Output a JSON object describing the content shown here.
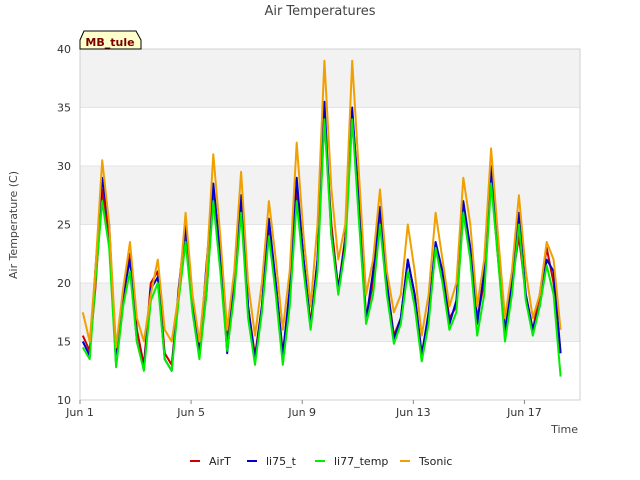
{
  "chart_data": {
    "type": "line",
    "title": "Air Temperatures",
    "xlabel": "Time",
    "ylabel": "Air Temperature (C)",
    "site_tag": "MB_tule",
    "ylim": [
      10,
      40
    ],
    "xlim": [
      0,
      18
    ],
    "x_unit": "days since Jun 1",
    "yticks": [
      10,
      15,
      20,
      25,
      30,
      35,
      40
    ],
    "xticks": [
      {
        "value": 0,
        "label": "Jun 1"
      },
      {
        "value": 4,
        "label": "Jun 5"
      },
      {
        "value": 8,
        "label": "Jun 9"
      },
      {
        "value": 12,
        "label": "Jun 13"
      },
      {
        "value": 16,
        "label": "Jun 17"
      }
    ],
    "grid": true,
    "bands": true,
    "legend_position": "bottom",
    "series": [
      {
        "name": "AirT",
        "color": "#cc0000",
        "x": [
          0.1,
          0.35,
          0.55,
          0.8,
          1.05,
          1.3,
          1.55,
          1.8,
          2.05,
          2.3,
          2.55,
          2.8,
          3.05,
          3.3,
          3.55,
          3.8,
          4.05,
          4.3,
          4.55,
          4.8,
          5.05,
          5.3,
          5.55,
          5.8,
          6.05,
          6.3,
          6.55,
          6.8,
          7.05,
          7.3,
          7.55,
          7.8,
          8.05,
          8.3,
          8.55,
          8.8,
          9.05,
          9.3,
          9.55,
          9.8,
          10.05,
          10.3,
          10.55,
          10.8,
          11.05,
          11.3,
          11.55,
          11.8,
          12.05,
          12.3,
          12.55,
          12.8,
          13.05,
          13.3,
          13.55,
          13.8,
          14.05,
          14.3,
          14.55,
          14.8,
          15.05,
          15.3,
          15.55,
          15.8,
          16.05,
          16.3,
          16.55,
          16.8,
          17.05,
          17.3
        ],
        "y": [
          15.5,
          14.2,
          19.5,
          28.0,
          24.0,
          14.0,
          18.5,
          22.5,
          16.0,
          13.0,
          20.0,
          21.0,
          14.0,
          13.0,
          19.0,
          24.0,
          18.0,
          14.2,
          19.0,
          27.5,
          22.0,
          15.0,
          20.0,
          26.5,
          18.0,
          13.8,
          18.0,
          25.0,
          20.0,
          14.0,
          19.0,
          28.0,
          22.0,
          16.5,
          22.0,
          34.0,
          25.0,
          19.5,
          24.0,
          34.5,
          27.0,
          17.0,
          20.0,
          26.0,
          20.0,
          15.5,
          17.0,
          22.0,
          19.0,
          14.0,
          17.0,
          23.0,
          21.0,
          17.0,
          18.0,
          26.0,
          23.0,
          17.0,
          20.0,
          29.0,
          22.0,
          16.0,
          20.0,
          24.0,
          19.0,
          16.0,
          19.0,
          23.0,
          20.0,
          14.0
        ]
      },
      {
        "name": "li75_t",
        "color": "#0000cc",
        "x": [
          0.1,
          0.35,
          0.55,
          0.8,
          1.05,
          1.3,
          1.55,
          1.8,
          2.05,
          2.3,
          2.55,
          2.8,
          3.05,
          3.3,
          3.55,
          3.8,
          4.05,
          4.3,
          4.55,
          4.8,
          5.05,
          5.3,
          5.55,
          5.8,
          6.05,
          6.3,
          6.55,
          6.8,
          7.05,
          7.3,
          7.55,
          7.8,
          8.05,
          8.3,
          8.55,
          8.8,
          9.05,
          9.3,
          9.55,
          9.8,
          10.05,
          10.3,
          10.55,
          10.8,
          11.05,
          11.3,
          11.55,
          11.8,
          12.05,
          12.3,
          12.55,
          12.8,
          13.05,
          13.3,
          13.55,
          13.8,
          14.05,
          14.3,
          14.55,
          14.8,
          15.05,
          15.3,
          15.55,
          15.8,
          16.05,
          16.3,
          16.55,
          16.8,
          17.05,
          17.3
        ],
        "y": [
          15.0,
          13.8,
          21.0,
          29.0,
          25.0,
          13.0,
          19.0,
          22.0,
          15.0,
          12.6,
          19.5,
          20.5,
          13.5,
          12.5,
          19.5,
          25.0,
          18.0,
          13.8,
          21.5,
          28.5,
          22.5,
          14.0,
          20.0,
          27.5,
          18.0,
          13.4,
          18.0,
          25.5,
          20.0,
          13.8,
          19.5,
          29.0,
          22.0,
          16.2,
          22.0,
          35.5,
          24.0,
          19.5,
          23.5,
          35.0,
          26.0,
          16.8,
          21.0,
          26.5,
          20.0,
          15.2,
          17.0,
          22.0,
          19.0,
          13.8,
          17.5,
          23.5,
          21.0,
          16.5,
          18.5,
          27.0,
          23.0,
          16.5,
          21.0,
          30.0,
          23.0,
          15.8,
          20.0,
          26.0,
          19.0,
          16.0,
          18.0,
          22.0,
          21.0,
          14.0
        ]
      },
      {
        "name": "li77_temp",
        "color": "#00ee00",
        "x": [
          0.1,
          0.35,
          0.55,
          0.8,
          1.05,
          1.3,
          1.55,
          1.8,
          2.05,
          2.3,
          2.55,
          2.8,
          3.05,
          3.3,
          3.55,
          3.8,
          4.05,
          4.3,
          4.55,
          4.8,
          5.05,
          5.3,
          5.55,
          5.8,
          6.05,
          6.3,
          6.55,
          6.8,
          7.05,
          7.3,
          7.55,
          7.8,
          8.05,
          8.3,
          8.55,
          8.8,
          9.05,
          9.3,
          9.55,
          9.8,
          10.05,
          10.3,
          10.55,
          10.8,
          11.05,
          11.3,
          11.55,
          11.8,
          12.05,
          12.3,
          12.55,
          12.8,
          13.05,
          13.3,
          13.55,
          13.8,
          14.05,
          14.3,
          14.55,
          14.8,
          15.05,
          15.3,
          15.55,
          15.8,
          16.05,
          16.3,
          16.55,
          16.8,
          17.05,
          17.3
        ],
        "y": [
          14.5,
          13.5,
          20.0,
          27.0,
          23.0,
          12.8,
          18.0,
          21.0,
          15.0,
          12.5,
          18.5,
          20.0,
          13.5,
          12.5,
          18.5,
          23.5,
          17.5,
          13.5,
          19.0,
          27.0,
          21.0,
          14.2,
          19.0,
          26.0,
          17.0,
          13.0,
          17.5,
          24.0,
          19.0,
          13.0,
          18.0,
          27.0,
          21.0,
          16.0,
          21.0,
          34.0,
          24.0,
          19.0,
          23.0,
          34.0,
          25.0,
          16.5,
          19.0,
          25.0,
          19.0,
          14.8,
          16.5,
          21.0,
          18.0,
          13.3,
          16.5,
          23.0,
          20.0,
          16.0,
          17.5,
          26.0,
          22.0,
          15.5,
          19.0,
          28.5,
          22.0,
          15.0,
          19.0,
          25.0,
          18.5,
          15.5,
          18.0,
          21.5,
          19.0,
          12.0
        ]
      },
      {
        "name": "Tsonic",
        "color": "#f0a000",
        "x": [
          0.1,
          0.35,
          0.55,
          0.8,
          1.05,
          1.3,
          1.55,
          1.8,
          2.05,
          2.3,
          2.55,
          2.8,
          3.05,
          3.3,
          3.55,
          3.8,
          4.05,
          4.3,
          4.55,
          4.8,
          5.05,
          5.3,
          5.55,
          5.8,
          6.05,
          6.3,
          6.55,
          6.8,
          7.05,
          7.3,
          7.55,
          7.8,
          8.05,
          8.3,
          8.55,
          8.8,
          9.05,
          9.3,
          9.55,
          9.8,
          10.05,
          10.3,
          10.55,
          10.8,
          11.05,
          11.3,
          11.55,
          11.8,
          12.05,
          12.3,
          12.55,
          12.8,
          13.05,
          13.3,
          13.55,
          13.8,
          14.05,
          14.3,
          14.55,
          14.8,
          15.05,
          15.3,
          15.55,
          15.8,
          16.05,
          16.3,
          16.55,
          16.8,
          17.05,
          17.3
        ],
        "y": [
          17.5,
          15.0,
          21.0,
          30.5,
          25.0,
          14.5,
          19.5,
          23.5,
          17.0,
          15.0,
          19.0,
          22.0,
          16.0,
          15.0,
          19.0,
          26.0,
          19.0,
          15.0,
          21.0,
          31.0,
          24.0,
          16.0,
          21.0,
          29.5,
          20.0,
          15.5,
          20.0,
          27.0,
          22.0,
          16.0,
          21.0,
          32.0,
          24.0,
          18.0,
          25.0,
          39.0,
          28.0,
          22.0,
          25.0,
          39.0,
          29.0,
          19.0,
          22.0,
          28.0,
          21.0,
          17.5,
          19.0,
          25.0,
          21.0,
          15.5,
          19.0,
          26.0,
          22.0,
          18.0,
          20.0,
          29.0,
          25.0,
          18.0,
          22.0,
          31.5,
          24.0,
          17.0,
          21.0,
          27.5,
          21.0,
          17.0,
          19.0,
          23.5,
          22.0,
          16.0
        ]
      }
    ]
  }
}
